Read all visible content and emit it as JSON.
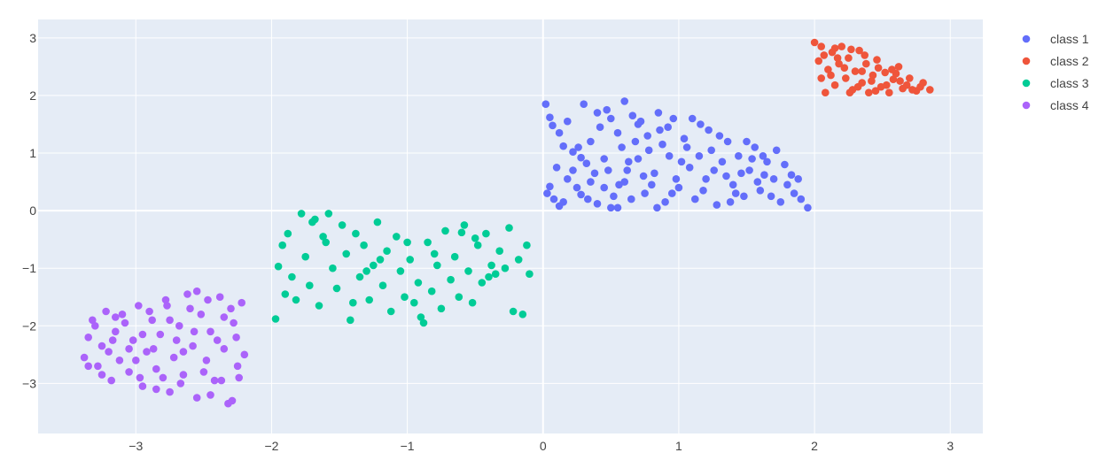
{
  "chart_data": {
    "type": "scatter",
    "title": "",
    "xlabel": "",
    "ylabel": "",
    "xlim": [
      -3.72,
      3.24
    ],
    "ylim": [
      -3.87,
      3.32
    ],
    "x_ticks": [
      -3,
      -2,
      -1,
      0,
      1,
      2,
      3
    ],
    "y_ticks": [
      -3,
      -2,
      -1,
      0,
      1,
      2,
      3
    ],
    "x_tick_labels": [
      "−3",
      "−2",
      "−1",
      "0",
      "1",
      "2",
      "3"
    ],
    "y_tick_labels": [
      "−3",
      "−2",
      "−1",
      "0",
      "1",
      "2",
      "3"
    ],
    "grid": true,
    "background_color": "#e5ecf6",
    "grid_color": "#ffffff",
    "legend_position": "top-right",
    "series": [
      {
        "name": "class 1",
        "color": "#636efa",
        "points": [
          [
            0.02,
            1.85
          ],
          [
            0.05,
            1.62
          ],
          [
            0.07,
            1.48
          ],
          [
            0.12,
            1.35
          ],
          [
            0.15,
            1.12
          ],
          [
            0.22,
            1.02
          ],
          [
            0.28,
            0.92
          ],
          [
            0.32,
            0.82
          ],
          [
            0.05,
            0.42
          ],
          [
            0.08,
            0.2
          ],
          [
            0.12,
            0.08
          ],
          [
            0.18,
            0.55
          ],
          [
            0.22,
            0.7
          ],
          [
            0.28,
            0.28
          ],
          [
            0.35,
            0.5
          ],
          [
            0.4,
            0.12
          ],
          [
            0.45,
            0.4
          ],
          [
            0.48,
            0.7
          ],
          [
            0.52,
            0.25
          ],
          [
            0.55,
            0.05
          ],
          [
            0.6,
            0.5
          ],
          [
            0.63,
            0.85
          ],
          [
            0.68,
            1.2
          ],
          [
            0.72,
            1.55
          ],
          [
            0.75,
            0.3
          ],
          [
            0.78,
            1.05
          ],
          [
            0.82,
            0.65
          ],
          [
            0.86,
            1.4
          ],
          [
            0.9,
            0.15
          ],
          [
            0.93,
            0.95
          ],
          [
            0.96,
            1.6
          ],
          [
            1.0,
            0.4
          ],
          [
            1.04,
            1.25
          ],
          [
            1.08,
            0.75
          ],
          [
            1.12,
            0.2
          ],
          [
            1.16,
            1.5
          ],
          [
            1.2,
            0.55
          ],
          [
            1.24,
            1.05
          ],
          [
            1.28,
            0.1
          ],
          [
            1.32,
            0.85
          ],
          [
            1.36,
            1.2
          ],
          [
            1.4,
            0.45
          ],
          [
            1.44,
            0.95
          ],
          [
            1.48,
            0.25
          ],
          [
            1.52,
            0.7
          ],
          [
            1.56,
            1.1
          ],
          [
            1.6,
            0.35
          ],
          [
            1.65,
            0.85
          ],
          [
            1.7,
            0.55
          ],
          [
            1.75,
            0.15
          ],
          [
            1.8,
            0.45
          ],
          [
            1.85,
            0.3
          ],
          [
            1.9,
            0.2
          ],
          [
            1.95,
            0.05
          ],
          [
            0.3,
            1.85
          ],
          [
            0.4,
            1.7
          ],
          [
            0.5,
            1.6
          ],
          [
            0.6,
            1.9
          ],
          [
            0.7,
            1.5
          ],
          [
            0.85,
            1.7
          ],
          [
            1.1,
            1.6
          ],
          [
            1.3,
            1.3
          ],
          [
            1.5,
            1.2
          ],
          [
            1.62,
            0.95
          ],
          [
            1.78,
            0.8
          ],
          [
            1.88,
            0.55
          ],
          [
            0.1,
            0.75
          ],
          [
            0.25,
            0.4
          ],
          [
            0.35,
            1.2
          ],
          [
            0.45,
            0.9
          ],
          [
            0.55,
            1.35
          ],
          [
            0.65,
            0.2
          ],
          [
            0.8,
            0.45
          ],
          [
            0.95,
            0.3
          ],
          [
            1.15,
            0.95
          ],
          [
            1.35,
            0.6
          ],
          [
            0.18,
            1.55
          ],
          [
            0.42,
            1.45
          ],
          [
            0.58,
            1.1
          ],
          [
            0.74,
            0.6
          ],
          [
            0.88,
            1.15
          ],
          [
            1.02,
            0.85
          ],
          [
            1.22,
            1.4
          ],
          [
            1.42,
            0.3
          ],
          [
            1.58,
            0.5
          ],
          [
            1.68,
            0.25
          ],
          [
            0.03,
            0.3
          ],
          [
            0.15,
            0.15
          ],
          [
            0.38,
            0.65
          ],
          [
            0.62,
            0.7
          ],
          [
            0.66,
            1.65
          ],
          [
            0.92,
            1.45
          ],
          [
            1.06,
            1.1
          ],
          [
            1.18,
            0.35
          ],
          [
            1.26,
            0.7
          ],
          [
            1.46,
            0.65
          ],
          [
            1.54,
            0.9
          ],
          [
            1.72,
            1.05
          ],
          [
            0.5,
            0.05
          ],
          [
            0.7,
            0.9
          ],
          [
            0.26,
            1.1
          ],
          [
            0.84,
            0.05
          ],
          [
            1.38,
            0.15
          ],
          [
            0.98,
            0.55
          ],
          [
            0.47,
            1.75
          ],
          [
            0.77,
            1.3
          ],
          [
            1.63,
            0.62
          ],
          [
            1.83,
            0.62
          ],
          [
            0.33,
            0.2
          ],
          [
            0.56,
            0.45
          ]
        ]
      },
      {
        "name": "class 2",
        "color": "#ef553b",
        "points": [
          [
            2.0,
            2.92
          ],
          [
            2.03,
            2.6
          ],
          [
            2.05,
            2.3
          ],
          [
            2.08,
            2.05
          ],
          [
            2.1,
            2.45
          ],
          [
            2.13,
            2.75
          ],
          [
            2.15,
            2.18
          ],
          [
            2.18,
            2.55
          ],
          [
            2.2,
            2.85
          ],
          [
            2.23,
            2.3
          ],
          [
            2.25,
            2.65
          ],
          [
            2.28,
            2.1
          ],
          [
            2.3,
            2.42
          ],
          [
            2.33,
            2.78
          ],
          [
            2.35,
            2.22
          ],
          [
            2.38,
            2.55
          ],
          [
            2.4,
            2.05
          ],
          [
            2.43,
            2.35
          ],
          [
            2.46,
            2.62
          ],
          [
            2.49,
            2.15
          ],
          [
            2.52,
            2.4
          ],
          [
            2.55,
            2.05
          ],
          [
            2.58,
            2.28
          ],
          [
            2.62,
            2.5
          ],
          [
            2.65,
            2.12
          ],
          [
            2.7,
            2.3
          ],
          [
            2.75,
            2.08
          ],
          [
            2.8,
            2.22
          ],
          [
            2.85,
            2.1
          ],
          [
            2.07,
            2.7
          ],
          [
            2.12,
            2.35
          ],
          [
            2.17,
            2.65
          ],
          [
            2.22,
            2.48
          ],
          [
            2.27,
            2.8
          ],
          [
            2.32,
            2.15
          ],
          [
            2.37,
            2.7
          ],
          [
            2.42,
            2.25
          ],
          [
            2.47,
            2.48
          ],
          [
            2.53,
            2.18
          ],
          [
            2.6,
            2.38
          ],
          [
            2.68,
            2.18
          ],
          [
            2.72,
            2.1
          ],
          [
            2.78,
            2.15
          ],
          [
            2.15,
            2.82
          ],
          [
            2.26,
            2.05
          ],
          [
            2.35,
            2.42
          ],
          [
            2.45,
            2.08
          ],
          [
            2.57,
            2.45
          ],
          [
            2.63,
            2.25
          ],
          [
            2.05,
            2.85
          ]
        ]
      },
      {
        "name": "class 3",
        "color": "#00cc96",
        "points": [
          [
            -1.97,
            -1.88
          ],
          [
            -1.95,
            -0.97
          ],
          [
            -1.92,
            -0.6
          ],
          [
            -1.88,
            -0.4
          ],
          [
            -1.85,
            -1.15
          ],
          [
            -1.82,
            -1.55
          ],
          [
            -1.78,
            -0.05
          ],
          [
            -1.75,
            -0.8
          ],
          [
            -1.72,
            -1.3
          ],
          [
            -1.68,
            -0.15
          ],
          [
            -1.65,
            -1.65
          ],
          [
            -1.62,
            -0.45
          ],
          [
            -1.58,
            -0.05
          ],
          [
            -1.55,
            -1.0
          ],
          [
            -1.52,
            -1.35
          ],
          [
            -1.48,
            -0.25
          ],
          [
            -1.45,
            -0.75
          ],
          [
            -1.42,
            -1.9
          ],
          [
            -1.38,
            -0.4
          ],
          [
            -1.35,
            -1.15
          ],
          [
            -1.32,
            -0.6
          ],
          [
            -1.28,
            -1.55
          ],
          [
            -1.25,
            -0.95
          ],
          [
            -1.22,
            -0.2
          ],
          [
            -1.18,
            -1.3
          ],
          [
            -1.15,
            -0.7
          ],
          [
            -1.12,
            -1.75
          ],
          [
            -1.08,
            -0.45
          ],
          [
            -1.05,
            -1.05
          ],
          [
            -1.02,
            -1.5
          ],
          [
            -0.98,
            -0.85
          ],
          [
            -0.95,
            -1.6
          ],
          [
            -0.92,
            -1.25
          ],
          [
            -0.88,
            -1.95
          ],
          [
            -0.85,
            -0.55
          ],
          [
            -0.82,
            -1.4
          ],
          [
            -0.78,
            -0.95
          ],
          [
            -0.75,
            -1.7
          ],
          [
            -0.72,
            -0.35
          ],
          [
            -0.68,
            -1.2
          ],
          [
            -0.65,
            -0.8
          ],
          [
            -0.62,
            -1.5
          ],
          [
            -0.58,
            -0.25
          ],
          [
            -0.55,
            -1.05
          ],
          [
            -0.52,
            -1.6
          ],
          [
            -0.48,
            -0.6
          ],
          [
            -0.45,
            -1.25
          ],
          [
            -0.42,
            -0.4
          ],
          [
            -0.38,
            -0.95
          ],
          [
            -0.35,
            -1.1
          ],
          [
            -0.32,
            -0.7
          ],
          [
            -0.28,
            -1.0
          ],
          [
            -0.25,
            -0.3
          ],
          [
            -0.22,
            -1.75
          ],
          [
            -0.18,
            -0.85
          ],
          [
            -0.15,
            -1.8
          ],
          [
            -0.12,
            -0.6
          ],
          [
            -0.1,
            -1.1
          ],
          [
            -1.9,
            -1.45
          ],
          [
            -1.6,
            -0.55
          ],
          [
            -1.4,
            -1.6
          ],
          [
            -1.2,
            -0.85
          ],
          [
            -1.0,
            -0.55
          ],
          [
            -0.8,
            -0.75
          ],
          [
            -0.6,
            -0.38
          ],
          [
            -0.4,
            -1.15
          ],
          [
            -1.7,
            -0.2
          ],
          [
            -1.3,
            -1.05
          ],
          [
            -0.9,
            -1.85
          ],
          [
            -0.5,
            -0.48
          ]
        ]
      },
      {
        "name": "class 4",
        "color": "#ab63fa",
        "points": [
          [
            -3.38,
            -2.55
          ],
          [
            -3.35,
            -2.2
          ],
          [
            -3.32,
            -1.9
          ],
          [
            -3.28,
            -2.7
          ],
          [
            -3.25,
            -2.35
          ],
          [
            -3.22,
            -1.75
          ],
          [
            -3.18,
            -2.95
          ],
          [
            -3.15,
            -2.1
          ],
          [
            -3.12,
            -2.6
          ],
          [
            -3.08,
            -1.95
          ],
          [
            -3.05,
            -2.8
          ],
          [
            -3.02,
            -2.25
          ],
          [
            -2.98,
            -1.65
          ],
          [
            -2.95,
            -3.05
          ],
          [
            -2.92,
            -2.45
          ],
          [
            -2.88,
            -1.9
          ],
          [
            -2.85,
            -2.75
          ],
          [
            -2.82,
            -2.15
          ],
          [
            -2.78,
            -1.55
          ],
          [
            -2.75,
            -3.15
          ],
          [
            -2.72,
            -2.55
          ],
          [
            -2.68,
            -2.0
          ],
          [
            -2.65,
            -2.85
          ],
          [
            -2.62,
            -1.45
          ],
          [
            -2.58,
            -2.35
          ],
          [
            -2.55,
            -3.25
          ],
          [
            -2.52,
            -1.8
          ],
          [
            -2.48,
            -2.6
          ],
          [
            -2.45,
            -2.1
          ],
          [
            -2.42,
            -2.95
          ],
          [
            -2.38,
            -1.5
          ],
          [
            -2.35,
            -2.4
          ],
          [
            -2.32,
            -3.35
          ],
          [
            -2.28,
            -1.95
          ],
          [
            -2.25,
            -2.7
          ],
          [
            -2.22,
            -1.6
          ],
          [
            -2.2,
            -2.5
          ],
          [
            -3.3,
            -2.0
          ],
          [
            -3.2,
            -2.45
          ],
          [
            -3.1,
            -1.8
          ],
          [
            -3.0,
            -2.6
          ],
          [
            -2.9,
            -1.75
          ],
          [
            -2.8,
            -2.9
          ],
          [
            -2.7,
            -2.25
          ],
          [
            -2.6,
            -1.7
          ],
          [
            -2.5,
            -2.8
          ],
          [
            -2.4,
            -2.25
          ],
          [
            -2.3,
            -1.7
          ],
          [
            -2.24,
            -2.9
          ],
          [
            -3.25,
            -2.85
          ],
          [
            -3.15,
            -1.85
          ],
          [
            -3.05,
            -2.4
          ],
          [
            -2.95,
            -2.15
          ],
          [
            -2.85,
            -3.1
          ],
          [
            -2.75,
            -1.9
          ],
          [
            -2.65,
            -2.45
          ],
          [
            -2.55,
            -1.4
          ],
          [
            -2.45,
            -3.2
          ],
          [
            -2.35,
            -1.85
          ],
          [
            -2.26,
            -2.2
          ],
          [
            -3.35,
            -2.7
          ],
          [
            -2.97,
            -2.9
          ],
          [
            -2.67,
            -3.0
          ],
          [
            -2.37,
            -2.95
          ],
          [
            -2.57,
            -2.1
          ],
          [
            -2.87,
            -2.4
          ],
          [
            -3.17,
            -2.25
          ],
          [
            -2.77,
            -1.65
          ],
          [
            -2.47,
            -1.55
          ],
          [
            -2.29,
            -3.3
          ]
        ]
      }
    ]
  }
}
